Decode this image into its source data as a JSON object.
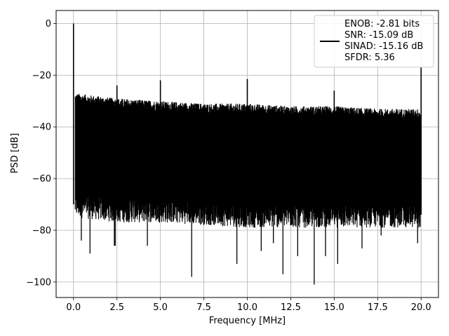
{
  "chart_data": {
    "type": "line",
    "title": "",
    "xlabel": "Frequency [MHz]",
    "ylabel": "PSD [dB]",
    "xlim": [
      -1.0,
      21.0
    ],
    "ylim": [
      -106.0,
      5.0
    ],
    "xticks": [
      0.0,
      2.5,
      5.0,
      7.5,
      10.0,
      12.5,
      15.0,
      17.5,
      20.0
    ],
    "xtick_labels": [
      "0.0",
      "2.5",
      "5.0",
      "7.5",
      "10.0",
      "12.5",
      "15.0",
      "17.5",
      "20.0"
    ],
    "yticks": [
      0,
      -20,
      -40,
      -60,
      -80,
      -100
    ],
    "ytick_labels": [
      "0",
      "−20",
      "−40",
      "−60",
      "−80",
      "−100"
    ],
    "grid": true,
    "legend_position": "top-right",
    "line_color": "#000000",
    "series": [
      {
        "name": "ENOB: -2.81 bits\nSNR: -15.09 dB\nSINAD: -15.16 dB\nSFDR: 5.36",
        "noise_band": [
          {
            "x": 0.1,
            "upper": -29,
            "lower": -70
          },
          {
            "x": 2.5,
            "upper": -31,
            "lower": -72
          },
          {
            "x": 5.0,
            "upper": -32,
            "lower": -72
          },
          {
            "x": 7.5,
            "upper": -33,
            "lower": -73
          },
          {
            "x": 10.0,
            "upper": -33,
            "lower": -74
          },
          {
            "x": 12.5,
            "upper": -34,
            "lower": -74
          },
          {
            "x": 15.0,
            "upper": -34,
            "lower": -74
          },
          {
            "x": 17.5,
            "upper": -35,
            "lower": -74
          },
          {
            "x": 19.95,
            "upper": -35,
            "lower": -74
          }
        ],
        "spikes": [
          {
            "x": 0.0,
            "y": 0.0
          },
          {
            "x": 2.5,
            "y": -24
          },
          {
            "x": 5.0,
            "y": -22
          },
          {
            "x": 10.0,
            "y": -21.5
          },
          {
            "x": 15.0,
            "y": -26
          },
          {
            "x": 20.0,
            "y": -17
          }
        ],
        "deep_dips": [
          {
            "x": 0.45,
            "y": -84
          },
          {
            "x": 0.95,
            "y": -89
          },
          {
            "x": 2.35,
            "y": -86
          },
          {
            "x": 2.4,
            "y": -86
          },
          {
            "x": 4.25,
            "y": -86
          },
          {
            "x": 6.8,
            "y": -98
          },
          {
            "x": 9.4,
            "y": -93
          },
          {
            "x": 10.8,
            "y": -88
          },
          {
            "x": 11.5,
            "y": -85
          },
          {
            "x": 12.05,
            "y": -97
          },
          {
            "x": 12.9,
            "y": -90
          },
          {
            "x": 13.85,
            "y": -101
          },
          {
            "x": 14.5,
            "y": -90
          },
          {
            "x": 15.2,
            "y": -93
          },
          {
            "x": 16.6,
            "y": -87
          },
          {
            "x": 17.7,
            "y": -82
          },
          {
            "x": 19.8,
            "y": -85
          }
        ]
      }
    ]
  }
}
